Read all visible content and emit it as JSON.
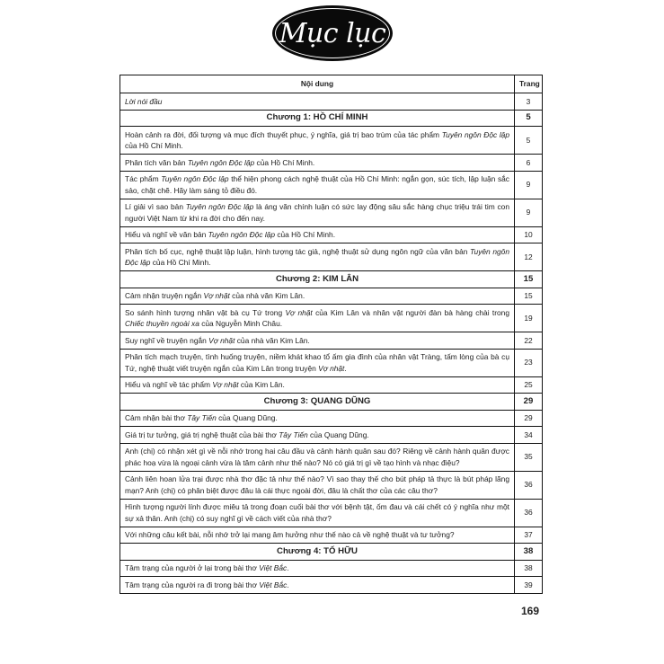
{
  "title": "Mục lục",
  "table": {
    "header": {
      "content": "Nội dung",
      "page": "Trang"
    },
    "rows": [
      {
        "type": "item",
        "parts": [
          {
            "t": "Lời nói đầu",
            "i": true
          }
        ],
        "page": "3"
      },
      {
        "type": "chapter",
        "parts": [
          {
            "t": "Chương 1: HỒ CHÍ MINH"
          }
        ],
        "page": "5"
      },
      {
        "type": "item",
        "parts": [
          {
            "t": "Hoàn cảnh ra đời, đối tượng và mục đích thuyết phục, ý nghĩa, giá trị bao trùm của tác phẩm "
          },
          {
            "t": "Tuyên ngôn Độc lập",
            "i": true
          },
          {
            "t": " của Hồ Chí Minh."
          }
        ],
        "page": "5"
      },
      {
        "type": "item",
        "parts": [
          {
            "t": "Phân tích văn bản "
          },
          {
            "t": "Tuyên ngôn Độc lập",
            "i": true
          },
          {
            "t": " của Hồ Chí Minh."
          }
        ],
        "page": "6"
      },
      {
        "type": "item",
        "parts": [
          {
            "t": "Tác phẩm "
          },
          {
            "t": "Tuyên ngôn Độc lập",
            "i": true
          },
          {
            "t": " thể hiện phong cách nghệ thuật của Hồ Chí Minh: ngắn gọn, súc tích, lập luận sắc sảo, chặt chẽ. Hãy làm sáng tỏ điều đó."
          }
        ],
        "page": "9"
      },
      {
        "type": "item",
        "parts": [
          {
            "t": "Lí giải vì sao bản "
          },
          {
            "t": "Tuyên ngôn Độc lập",
            "i": true
          },
          {
            "t": " là áng văn chính luận có sức lay động sâu sắc hàng chục triệu trái tim con người Việt Nam từ khi ra đời cho đến nay."
          }
        ],
        "page": "9"
      },
      {
        "type": "item",
        "parts": [
          {
            "t": "Hiểu và nghĩ về văn bản "
          },
          {
            "t": "Tuyên ngôn Độc lập",
            "i": true
          },
          {
            "t": " của Hồ Chí Minh."
          }
        ],
        "page": "10"
      },
      {
        "type": "item",
        "parts": [
          {
            "t": "Phân tích bố cục, nghệ thuật lập luận, hình tượng tác giả, nghệ thuật sử dụng ngôn ngữ của văn bản "
          },
          {
            "t": "Tuyên ngôn Độc lập",
            "i": true
          },
          {
            "t": " của Hồ Chí Minh."
          }
        ],
        "page": "12"
      },
      {
        "type": "chapter",
        "parts": [
          {
            "t": "Chương 2: KIM LÂN"
          }
        ],
        "page": "15"
      },
      {
        "type": "item",
        "parts": [
          {
            "t": "Cảm nhận truyện ngắn "
          },
          {
            "t": "Vợ nhặt",
            "i": true
          },
          {
            "t": " của nhà văn Kim Lân."
          }
        ],
        "page": "15"
      },
      {
        "type": "item",
        "parts": [
          {
            "t": "So sánh hình tượng nhân vật bà cụ Tứ trong "
          },
          {
            "t": "Vợ nhặt",
            "i": true
          },
          {
            "t": " của Kim Lân và nhân vật người đàn bà hàng chài trong "
          },
          {
            "t": "Chiếc thuyền ngoài xa",
            "i": true
          },
          {
            "t": " của Nguyễn Minh Châu."
          }
        ],
        "page": "19"
      },
      {
        "type": "item",
        "parts": [
          {
            "t": "Suy nghĩ về truyện ngắn "
          },
          {
            "t": "Vợ nhặt",
            "i": true
          },
          {
            "t": " của nhà văn Kim Lân."
          }
        ],
        "page": "22"
      },
      {
        "type": "item",
        "parts": [
          {
            "t": "Phân tích mạch truyện, tình huống truyện, niềm khát khao tổ ấm gia đình của nhân vật Tràng, tấm lòng của bà cụ Tứ, nghệ thuật viết truyện ngắn của Kim Lân trong truyện "
          },
          {
            "t": "Vợ nhặt",
            "i": true
          },
          {
            "t": "."
          }
        ],
        "page": "23"
      },
      {
        "type": "item",
        "parts": [
          {
            "t": "Hiểu và nghĩ về tác phẩm "
          },
          {
            "t": "Vợ nhặt",
            "i": true
          },
          {
            "t": " của Kim Lân."
          }
        ],
        "page": "25"
      },
      {
        "type": "chapter",
        "parts": [
          {
            "t": "Chương 3: QUANG DŨNG"
          }
        ],
        "page": "29"
      },
      {
        "type": "item",
        "parts": [
          {
            "t": "Cảm nhận bài thơ "
          },
          {
            "t": "Tây Tiến",
            "i": true
          },
          {
            "t": " của Quang Dũng."
          }
        ],
        "page": "29"
      },
      {
        "type": "item",
        "parts": [
          {
            "t": "Giá trị tư tưởng, giá trị nghệ thuật của bài thơ "
          },
          {
            "t": "Tây Tiến",
            "i": true
          },
          {
            "t": " của Quang Dũng."
          }
        ],
        "page": "34"
      },
      {
        "type": "item",
        "parts": [
          {
            "t": "Anh (chị) có nhận xét gì về nỗi nhớ trong hai câu đầu và cảnh hành quân sau đó? Riêng về cảnh hành quân được phác hoạ vừa là ngoại cảnh vừa là tâm cảnh như thế nào? Nó có giá trị gì về tạo hình và nhạc điệu?"
          }
        ],
        "page": "35"
      },
      {
        "type": "item",
        "parts": [
          {
            "t": "Cảnh liên hoan lửa trại được nhà thơ đặc tả như thế nào? Vì sao thay thế cho bút pháp tả thực là bút pháp lãng mạn? Anh (chị) có phân biệt được đâu là cái thực ngoài đời, đâu là chất thơ của các câu thơ?"
          }
        ],
        "page": "36"
      },
      {
        "type": "item",
        "parts": [
          {
            "t": "Hình tượng người lính được miêu tả trong đoạn cuối bài thơ với bệnh tật, ốm đau và cái chết có ý nghĩa như một sự xả thân. Anh (chị) có suy nghĩ gì về cách viết của nhà thơ?"
          }
        ],
        "page": "36"
      },
      {
        "type": "item",
        "parts": [
          {
            "t": "Với những câu kết bài, nỗi nhớ trở lại mang âm hưởng như thế nào cả về nghệ thuật và tư tưởng?"
          }
        ],
        "page": "37"
      },
      {
        "type": "chapter",
        "parts": [
          {
            "t": "Chương 4: TỐ HỮU"
          }
        ],
        "page": "38"
      },
      {
        "type": "item",
        "parts": [
          {
            "t": "Tâm trạng của người ở lại trong bài thơ "
          },
          {
            "t": "Việt Bắc",
            "i": true
          },
          {
            "t": "."
          }
        ],
        "page": "38"
      },
      {
        "type": "item",
        "parts": [
          {
            "t": "Tâm trạng của người ra đi trong bài thơ "
          },
          {
            "t": "Việt Bắc",
            "i": true
          },
          {
            "t": "."
          }
        ],
        "page": "39"
      }
    ]
  },
  "page_number": "169"
}
